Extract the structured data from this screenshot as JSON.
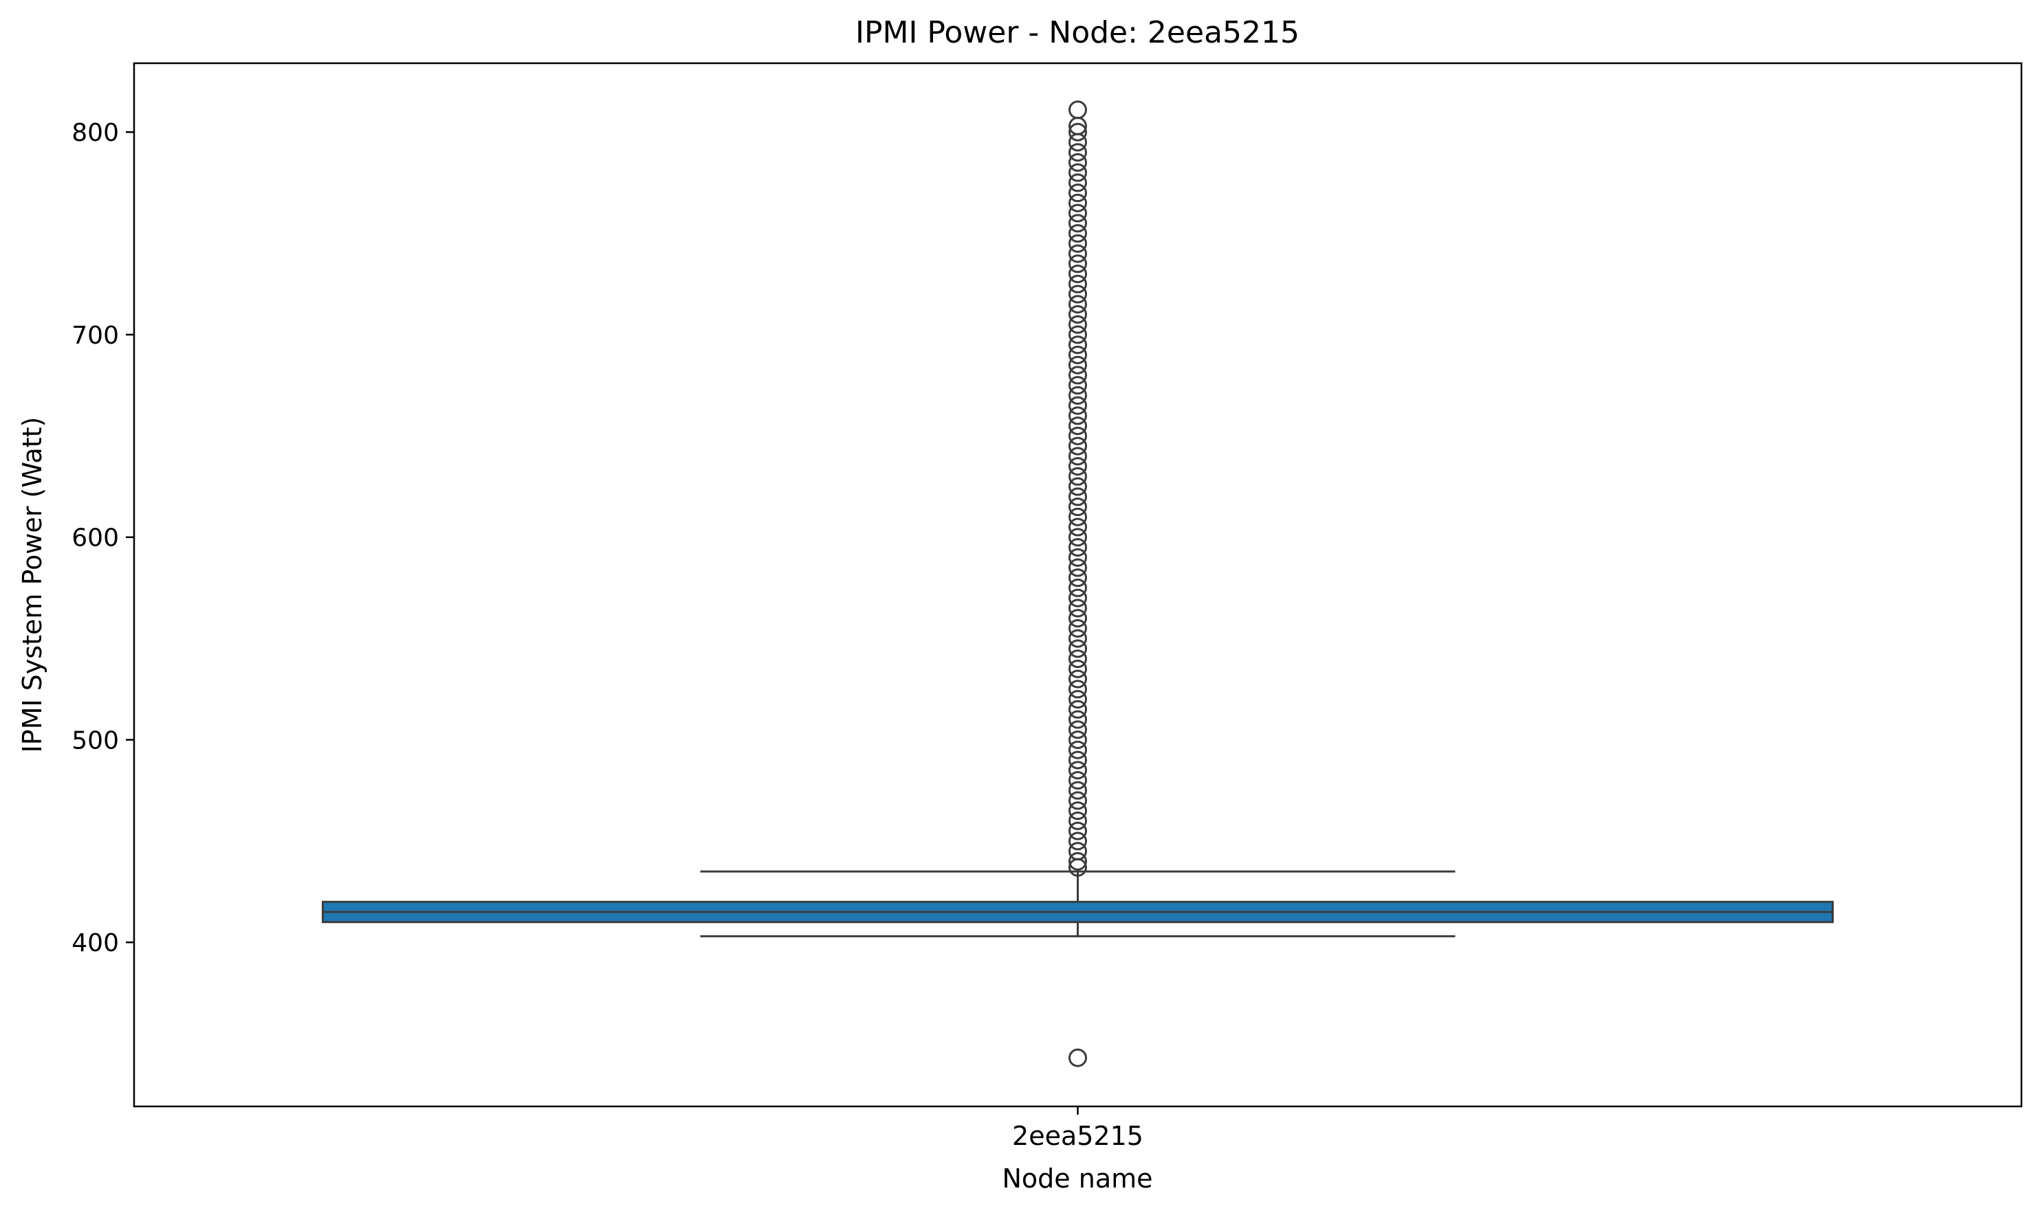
{
  "chart_data": {
    "type": "box",
    "title": "IPMI Power - Node: 2eea5215",
    "xlabel": "Node name",
    "ylabel": "IPMI System Power (Watt)",
    "categories": [
      "2eea5215"
    ],
    "y_ticks": [
      400,
      500,
      600,
      700,
      800
    ],
    "ylim": [
      319,
      834
    ],
    "grid": false,
    "legend": "none",
    "box_color": "#1f77b4",
    "line_color": "#3c3c3c",
    "series": [
      {
        "category": "2eea5215",
        "whisker_low": 403,
        "q1": 410,
        "median": 415,
        "q3": 420,
        "whisker_high": 435,
        "outliers_low": [
          343
        ],
        "outliers_high": [
          437,
          440,
          445,
          450,
          455,
          460,
          465,
          470,
          475,
          480,
          485,
          490,
          495,
          500,
          505,
          510,
          515,
          520,
          525,
          530,
          535,
          540,
          545,
          550,
          555,
          560,
          565,
          570,
          575,
          580,
          585,
          590,
          595,
          600,
          605,
          610,
          615,
          620,
          625,
          630,
          635,
          640,
          645,
          650,
          655,
          660,
          665,
          670,
          675,
          680,
          685,
          690,
          695,
          700,
          705,
          710,
          715,
          720,
          725,
          730,
          735,
          740,
          745,
          750,
          755,
          760,
          765,
          770,
          775,
          780,
          785,
          790,
          795,
          800,
          803,
          811
        ]
      }
    ]
  }
}
